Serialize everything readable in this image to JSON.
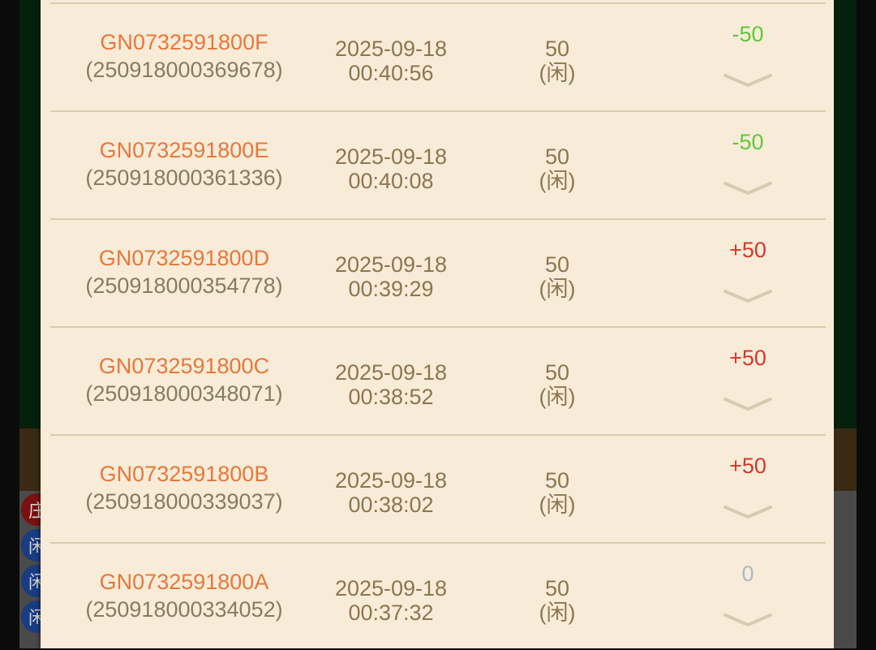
{
  "background_chips": [
    "庄",
    "闲",
    "闲",
    "闲"
  ],
  "records": [
    {
      "game_id": "GN0732591800F",
      "serial": "(250918000369678)",
      "date": "2025-09-18",
      "time": "00:40:56",
      "amount": "50",
      "bet": "(闲)",
      "result": "-50",
      "result_color": "#5cc93a"
    },
    {
      "game_id": "GN0732591800E",
      "serial": "(250918000361336)",
      "date": "2025-09-18",
      "time": "00:40:08",
      "amount": "50",
      "bet": "(闲)",
      "result": "-50",
      "result_color": "#5cc93a"
    },
    {
      "game_id": "GN0732591800D",
      "serial": "(250918000354778)",
      "date": "2025-09-18",
      "time": "00:39:29",
      "amount": "50",
      "bet": "(闲)",
      "result": "+50",
      "result_color": "#d9342b"
    },
    {
      "game_id": "GN0732591800C",
      "serial": "(250918000348071)",
      "date": "2025-09-18",
      "time": "00:38:52",
      "amount": "50",
      "bet": "(闲)",
      "result": "+50",
      "result_color": "#d9342b"
    },
    {
      "game_id": "GN0732591800B",
      "serial": "(250918000339037)",
      "date": "2025-09-18",
      "time": "00:38:02",
      "amount": "50",
      "bet": "(闲)",
      "result": "+50",
      "result_color": "#d9342b"
    },
    {
      "game_id": "GN0732591800A",
      "serial": "(250918000334052)",
      "date": "2025-09-18",
      "time": "00:37:32",
      "amount": "50",
      "bet": "(闲)",
      "result": "0",
      "result_color": "#a9b8c8"
    }
  ]
}
